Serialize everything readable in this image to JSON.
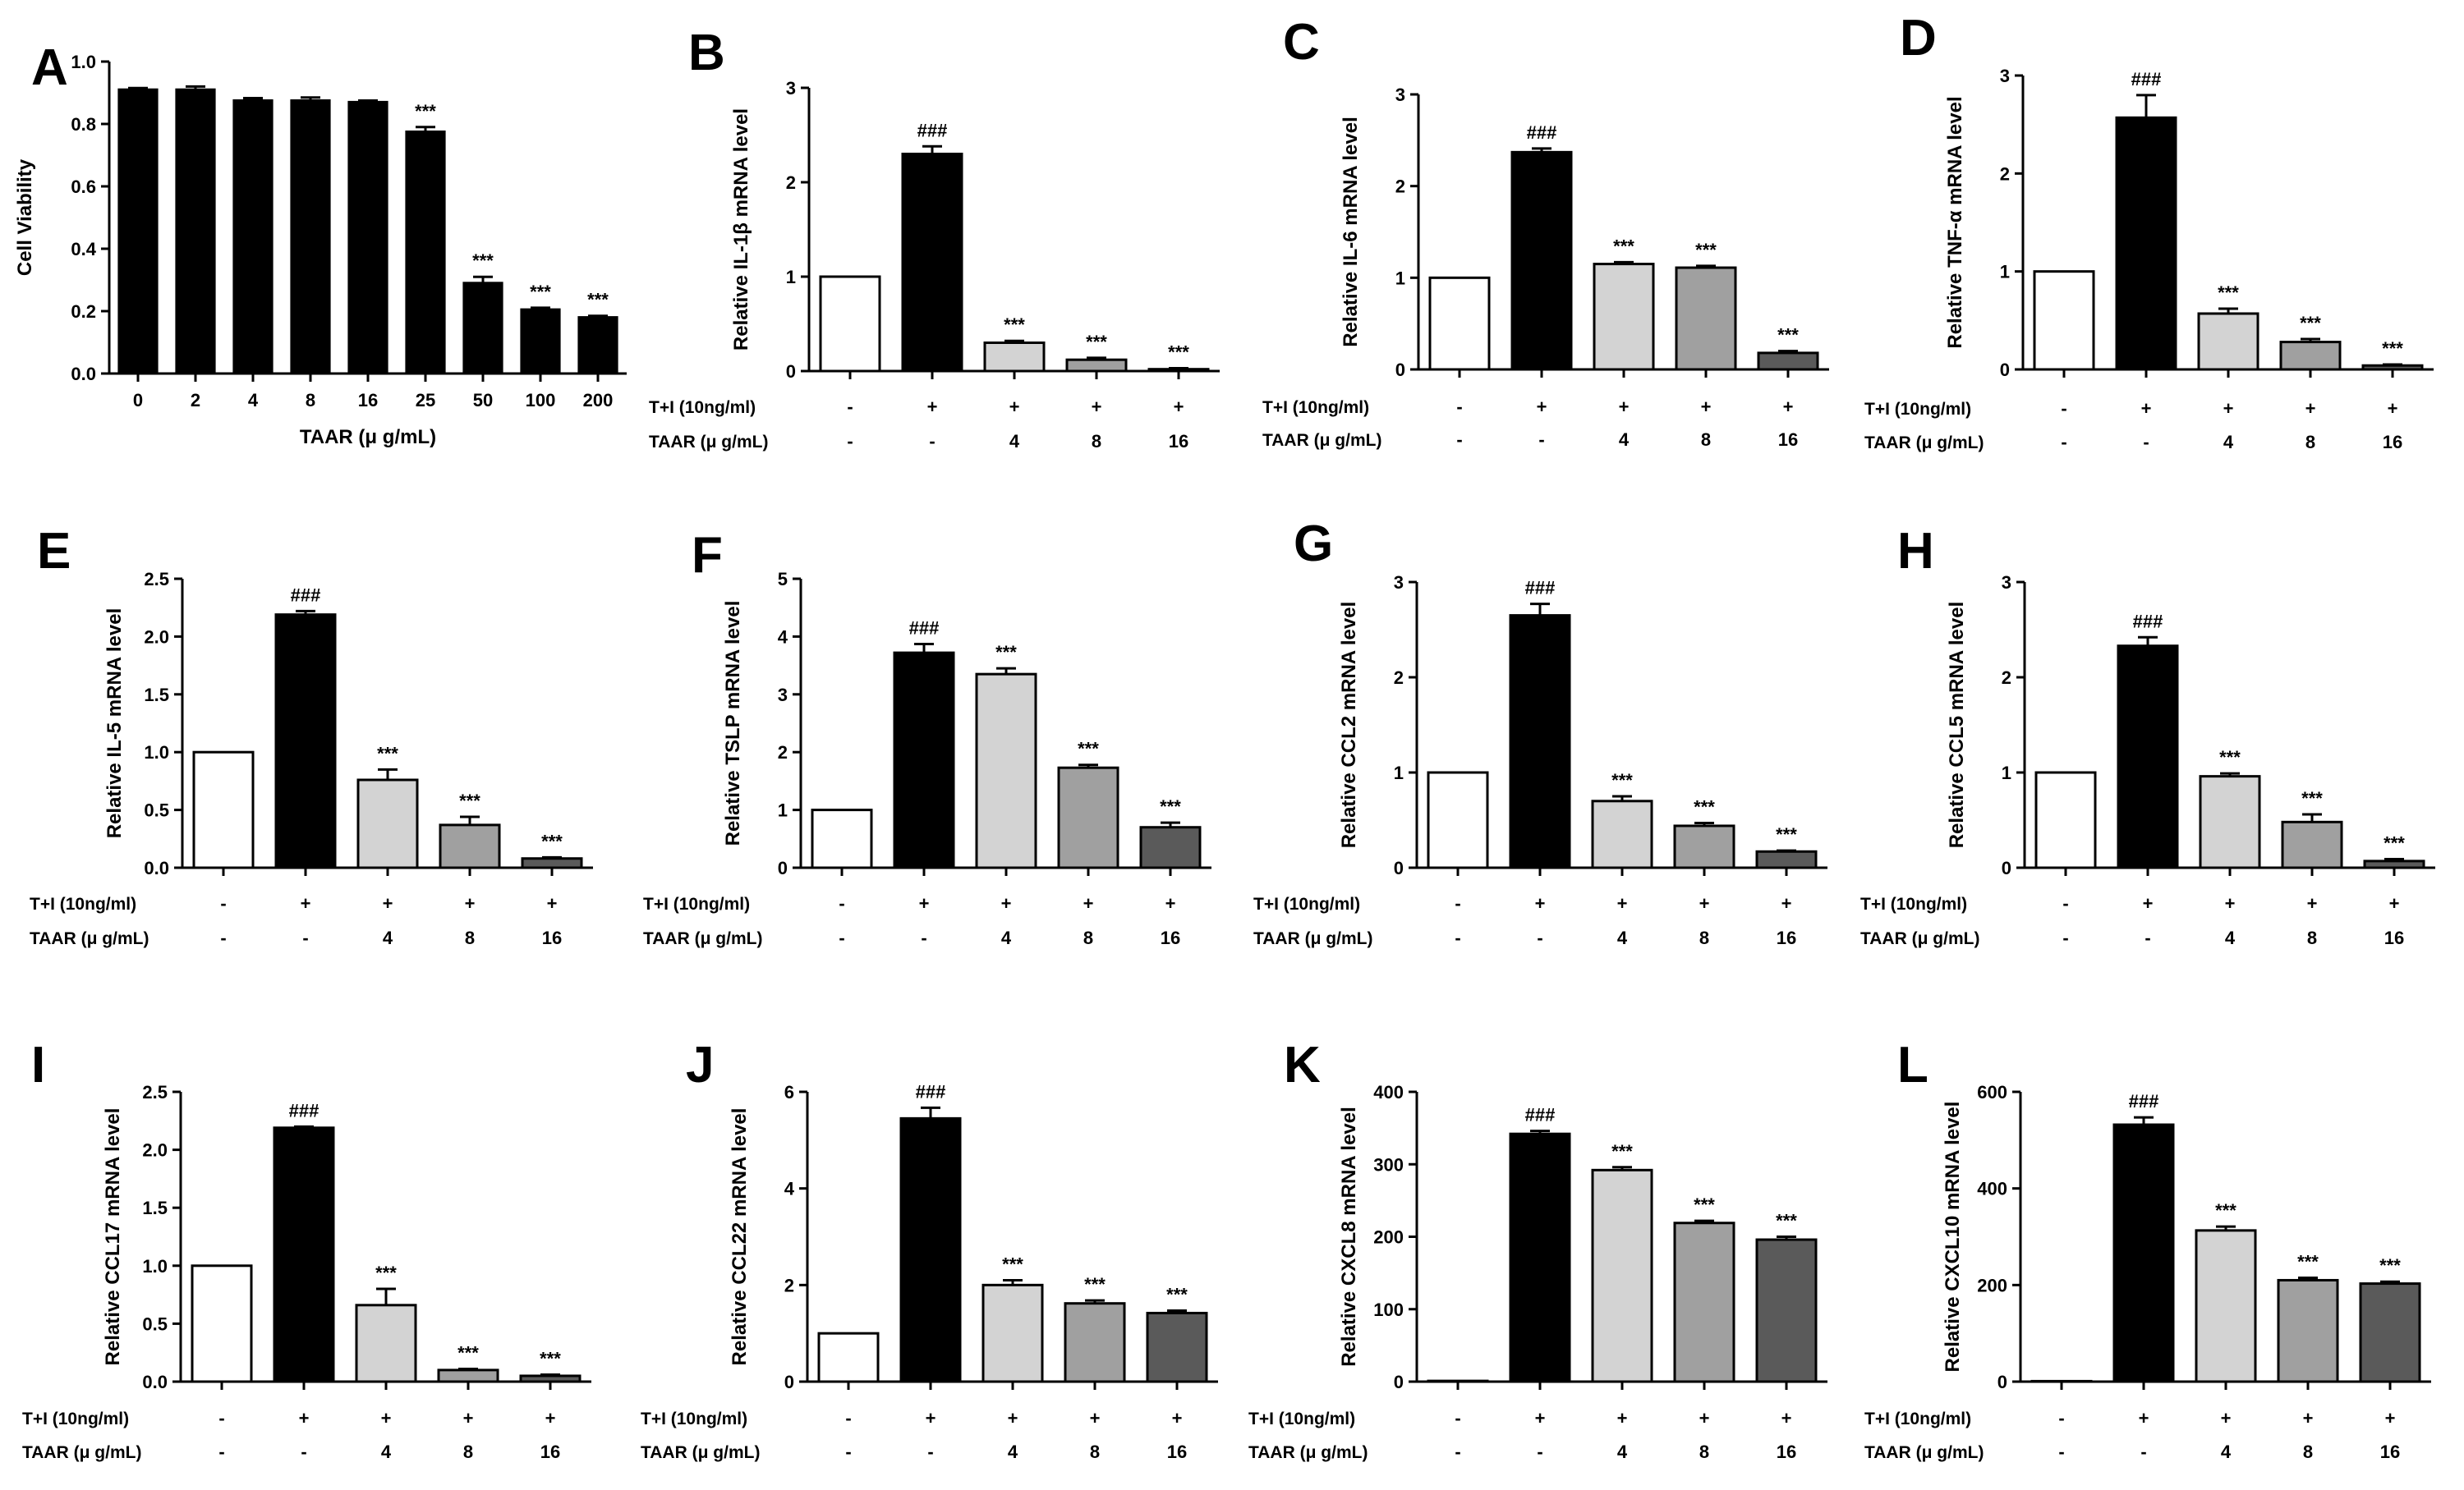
{
  "chart_data": [
    {
      "id": "A",
      "type": "bar",
      "letter": "A",
      "categories": [
        "0",
        "2",
        "4",
        "8",
        "16",
        "25",
        "50",
        "100",
        "200"
      ],
      "values": [
        0.91,
        0.91,
        0.875,
        0.875,
        0.87,
        0.775,
        0.29,
        0.205,
        0.18
      ],
      "errors": [
        0.005,
        0.01,
        0.008,
        0.01,
        0.005,
        0.015,
        0.02,
        0.006,
        0.005
      ],
      "colors": [
        "#000000",
        "#000000",
        "#000000",
        "#000000",
        "#000000",
        "#000000",
        "#000000",
        "#000000",
        "#000000"
      ],
      "sig": [
        "",
        "",
        "",
        "",
        "",
        "***",
        "***",
        "***",
        "***"
      ],
      "ylabel": "Cell Viability",
      "xlabel": "TAAR (μ g/mL)",
      "ylim": [
        0,
        1.0
      ],
      "yticks": [
        "0.0",
        "0.2",
        "0.4",
        "0.6",
        "0.8",
        "1.0"
      ]
    },
    {
      "id": "B",
      "type": "bar",
      "letter": "B",
      "values": [
        1.0,
        2.3,
        0.3,
        0.12,
        0.02
      ],
      "errors": [
        0,
        0.08,
        0.02,
        0.02,
        0.01
      ],
      "colors": [
        "#ffffff",
        "#000000",
        "#d3d3d3",
        "#a0a0a0",
        "#5a5a5a"
      ],
      "sig": [
        "",
        "###",
        "***",
        "***",
        "***"
      ],
      "ylabel": "Relative IL-1β  mRNA level",
      "ylim": [
        0,
        3
      ],
      "yticks": [
        "0",
        "1",
        "2",
        "3"
      ],
      "row1": {
        "label": "T+I (10ng/ml)",
        "values": [
          "-",
          "+",
          "+",
          "+",
          "+"
        ]
      },
      "row2": {
        "label": "TAAR (μ g/mL)",
        "values": [
          "-",
          "-",
          "4",
          "8",
          "16"
        ]
      }
    },
    {
      "id": "C",
      "type": "bar",
      "letter": "C",
      "values": [
        1.0,
        2.37,
        1.15,
        1.11,
        0.18
      ],
      "errors": [
        0,
        0.04,
        0.02,
        0.02,
        0.02
      ],
      "colors": [
        "#ffffff",
        "#000000",
        "#d3d3d3",
        "#a0a0a0",
        "#5a5a5a"
      ],
      "sig": [
        "",
        "###",
        "***",
        "***",
        "***"
      ],
      "ylabel": "Relative IL-6 mRNA level",
      "ylim": [
        0,
        3
      ],
      "yticks": [
        "0",
        "1",
        "2",
        "3"
      ],
      "row1": {
        "label": "T+I (10ng/ml)",
        "values": [
          "-",
          "+",
          "+",
          "+",
          "+"
        ]
      },
      "row2": {
        "label": "TAAR (μ g/mL)",
        "values": [
          "-",
          "-",
          "4",
          "8",
          "16"
        ]
      }
    },
    {
      "id": "D",
      "type": "bar",
      "letter": "D",
      "values": [
        1.0,
        2.57,
        0.57,
        0.28,
        0.04
      ],
      "errors": [
        0,
        0.23,
        0.05,
        0.03,
        0.01
      ],
      "colors": [
        "#ffffff",
        "#000000",
        "#d3d3d3",
        "#a0a0a0",
        "#5a5a5a"
      ],
      "sig": [
        "",
        "###",
        "***",
        "***",
        "***"
      ],
      "ylabel": "Relative TNF-α  mRNA level",
      "ylim": [
        0,
        3
      ],
      "yticks": [
        "0",
        "1",
        "2",
        "3"
      ],
      "row1": {
        "label": "T+I (10ng/ml)",
        "values": [
          "-",
          "+",
          "+",
          "+",
          "+"
        ]
      },
      "row2": {
        "label": "TAAR (μ g/mL)",
        "values": [
          "-",
          "-",
          "4",
          "8",
          "16"
        ]
      }
    },
    {
      "id": "E",
      "type": "bar",
      "letter": "E",
      "values": [
        1.0,
        2.19,
        0.76,
        0.37,
        0.08
      ],
      "errors": [
        0,
        0.03,
        0.09,
        0.07,
        0.01
      ],
      "colors": [
        "#ffffff",
        "#000000",
        "#d3d3d3",
        "#a0a0a0",
        "#5a5a5a"
      ],
      "sig": [
        "",
        "###",
        "***",
        "***",
        "***"
      ],
      "ylabel": "Relative IL-5 mRNA level",
      "ylim": [
        0,
        2.5
      ],
      "yticks": [
        "0.0",
        "0.5",
        "1.0",
        "1.5",
        "2.0",
        "2.5"
      ],
      "row1": {
        "label": "T+I (10ng/ml)",
        "values": [
          "-",
          "+",
          "+",
          "+",
          "+"
        ]
      },
      "row2": {
        "label": "TAAR (μ g/mL)",
        "values": [
          "-",
          "-",
          "4",
          "8",
          "16"
        ]
      }
    },
    {
      "id": "F",
      "type": "bar",
      "letter": "F",
      "values": [
        1.0,
        3.72,
        3.35,
        1.73,
        0.7
      ],
      "errors": [
        0,
        0.15,
        0.1,
        0.05,
        0.08
      ],
      "colors": [
        "#ffffff",
        "#000000",
        "#d3d3d3",
        "#a0a0a0",
        "#5a5a5a"
      ],
      "sig": [
        "",
        "###",
        "***",
        "***",
        "***"
      ],
      "ylabel": "Relative TSLP mRNA level",
      "ylim": [
        0,
        5
      ],
      "yticks": [
        "0",
        "1",
        "2",
        "3",
        "4",
        "5"
      ],
      "row1": {
        "label": "T+I (10ng/ml)",
        "values": [
          "-",
          "+",
          "+",
          "+",
          "+"
        ]
      },
      "row2": {
        "label": "TAAR (μ g/mL)",
        "values": [
          "-",
          "-",
          "4",
          "8",
          "16"
        ]
      }
    },
    {
      "id": "G",
      "type": "bar",
      "letter": "G",
      "values": [
        1.0,
        2.65,
        0.7,
        0.44,
        0.17
      ],
      "errors": [
        0,
        0.12,
        0.05,
        0.03,
        0.01
      ],
      "colors": [
        "#ffffff",
        "#000000",
        "#d3d3d3",
        "#a0a0a0",
        "#5a5a5a"
      ],
      "sig": [
        "",
        "###",
        "***",
        "***",
        "***"
      ],
      "ylabel": "Relative CCL2 mRNA level",
      "ylim": [
        0,
        3
      ],
      "yticks": [
        "0",
        "1",
        "2",
        "3"
      ],
      "row1": {
        "label": "T+I (10ng/ml)",
        "values": [
          "-",
          "+",
          "+",
          "+",
          "+"
        ]
      },
      "row2": {
        "label": "TAAR (μ g/mL)",
        "values": [
          "-",
          "-",
          "4",
          "8",
          "16"
        ]
      }
    },
    {
      "id": "H",
      "type": "bar",
      "letter": "H",
      "values": [
        1.0,
        2.33,
        0.96,
        0.48,
        0.07
      ],
      "errors": [
        0,
        0.09,
        0.03,
        0.08,
        0.02
      ],
      "colors": [
        "#ffffff",
        "#000000",
        "#d3d3d3",
        "#a0a0a0",
        "#5a5a5a"
      ],
      "sig": [
        "",
        "###",
        "***",
        "***",
        "***"
      ],
      "ylabel": "Relative CCL5 mRNA level",
      "ylim": [
        0,
        3
      ],
      "yticks": [
        "0",
        "1",
        "2",
        "3"
      ],
      "row1": {
        "label": "T+I (10ng/ml)",
        "values": [
          "-",
          "+",
          "+",
          "+",
          "+"
        ]
      },
      "row2": {
        "label": "TAAR (μ g/mL)",
        "values": [
          "-",
          "-",
          "4",
          "8",
          "16"
        ]
      }
    },
    {
      "id": "I",
      "type": "bar",
      "letter": "I",
      "values": [
        1.0,
        2.19,
        0.66,
        0.1,
        0.05
      ],
      "errors": [
        0,
        0.01,
        0.14,
        0.01,
        0.01
      ],
      "colors": [
        "#ffffff",
        "#000000",
        "#d3d3d3",
        "#a0a0a0",
        "#5a5a5a"
      ],
      "sig": [
        "",
        "###",
        "***",
        "***",
        "***"
      ],
      "ylabel": "Relative CCL17 mRNA level",
      "ylim": [
        0,
        2.5
      ],
      "yticks": [
        "0.0",
        "0.5",
        "1.0",
        "1.5",
        "2.0",
        "2.5"
      ],
      "row1": {
        "label": "T+I (10ng/ml)",
        "values": [
          "-",
          "+",
          "+",
          "+",
          "+"
        ]
      },
      "row2": {
        "label": "TAAR (μ g/mL)",
        "values": [
          "-",
          "-",
          "4",
          "8",
          "16"
        ]
      }
    },
    {
      "id": "J",
      "type": "bar",
      "letter": "J",
      "values": [
        1.0,
        5.45,
        2.0,
        1.62,
        1.42
      ],
      "errors": [
        0,
        0.22,
        0.1,
        0.06,
        0.05
      ],
      "colors": [
        "#ffffff",
        "#000000",
        "#d3d3d3",
        "#a0a0a0",
        "#5a5a5a"
      ],
      "sig": [
        "",
        "###",
        "***",
        "***",
        "***"
      ],
      "ylabel": "Relative  CCL22 mRNA level",
      "ylim": [
        0,
        6
      ],
      "yticks": [
        "0",
        "2",
        "4",
        "6"
      ],
      "row1": {
        "label": "T+I (10ng/ml)",
        "values": [
          "-",
          "+",
          "+",
          "+",
          "+"
        ]
      },
      "row2": {
        "label": "TAAR (μ g/mL)",
        "values": [
          "-",
          "-",
          "4",
          "8",
          "16"
        ]
      }
    },
    {
      "id": "K",
      "type": "bar",
      "letter": "K",
      "values": [
        1.0,
        342,
        292,
        219,
        196
      ],
      "errors": [
        0,
        4,
        4,
        3,
        4
      ],
      "colors": [
        "#ffffff",
        "#000000",
        "#d3d3d3",
        "#a0a0a0",
        "#5a5a5a"
      ],
      "sig": [
        "",
        "###",
        "***",
        "***",
        "***"
      ],
      "ylabel": "Relative  CXCL8 mRNA level",
      "ylim": [
        0,
        400
      ],
      "yticks": [
        "0",
        "100",
        "200",
        "300",
        "400"
      ],
      "row1": {
        "label": "T+I (10ng/ml)",
        "values": [
          "-",
          "+",
          "+",
          "+",
          "+"
        ]
      },
      "row2": {
        "label": "TAAR (μ g/mL)",
        "values": [
          "-",
          "-",
          "4",
          "8",
          "16"
        ]
      }
    },
    {
      "id": "L",
      "type": "bar",
      "letter": "L",
      "values": [
        1.0,
        532,
        313,
        210,
        203
      ],
      "errors": [
        0,
        15,
        8,
        5,
        4
      ],
      "colors": [
        "#ffffff",
        "#000000",
        "#d3d3d3",
        "#a0a0a0",
        "#5a5a5a"
      ],
      "sig": [
        "",
        "###",
        "***",
        "***",
        "***"
      ],
      "ylabel": "Relative  CXCL10 mRNA level",
      "ylim": [
        0,
        600
      ],
      "yticks": [
        "0",
        "200",
        "400",
        "600"
      ],
      "row1": {
        "label": "T+I (10ng/ml)",
        "values": [
          "-",
          "+",
          "+",
          "+",
          "+"
        ]
      },
      "row2": {
        "label": "TAAR (μ g/mL)",
        "values": [
          "-",
          "-",
          "4",
          "8",
          "16"
        ]
      }
    }
  ]
}
